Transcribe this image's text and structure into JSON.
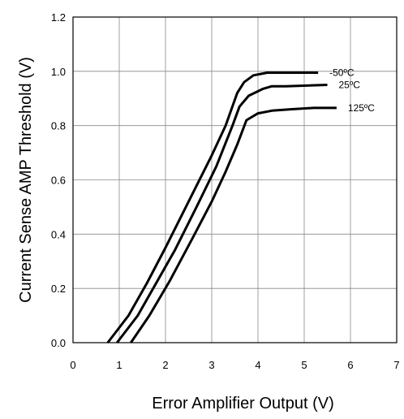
{
  "chart_data": {
    "type": "line",
    "title": "",
    "xlabel": "Error Amplifier Output (V)",
    "ylabel": "Current Sense AMP Threshold (V)",
    "xlim": [
      0,
      7
    ],
    "ylim": [
      0,
      1.2
    ],
    "x_ticks": [
      "0",
      "1",
      "2",
      "3",
      "4",
      "5",
      "6",
      "7"
    ],
    "y_ticks": [
      "0.0",
      "0.2",
      "0.4",
      "0.6",
      "0.8",
      "1.0",
      "1.2"
    ],
    "grid": true,
    "series": [
      {
        "name": "-50ºC",
        "color": "#000000",
        "points": [
          [
            0.75,
            0.0
          ],
          [
            1.2,
            0.1
          ],
          [
            1.6,
            0.22
          ],
          [
            2.0,
            0.35
          ],
          [
            2.5,
            0.52
          ],
          [
            3.0,
            0.69
          ],
          [
            3.3,
            0.8
          ],
          [
            3.55,
            0.92
          ],
          [
            3.7,
            0.96
          ],
          [
            3.9,
            0.985
          ],
          [
            4.2,
            0.995
          ],
          [
            5.3,
            0.995
          ]
        ]
      },
      {
        "name": "25ºC",
        "color": "#000000",
        "points": [
          [
            0.95,
            0.0
          ],
          [
            1.4,
            0.1
          ],
          [
            1.8,
            0.22
          ],
          [
            2.2,
            0.34
          ],
          [
            2.7,
            0.51
          ],
          [
            3.1,
            0.65
          ],
          [
            3.45,
            0.8
          ],
          [
            3.6,
            0.87
          ],
          [
            3.8,
            0.91
          ],
          [
            4.1,
            0.935
          ],
          [
            4.3,
            0.945
          ],
          [
            4.6,
            0.945
          ],
          [
            5.5,
            0.95
          ]
        ]
      },
      {
        "name": "125ºC",
        "color": "#000000",
        "points": [
          [
            1.25,
            0.0
          ],
          [
            1.65,
            0.1
          ],
          [
            2.1,
            0.23
          ],
          [
            2.6,
            0.39
          ],
          [
            3.0,
            0.52
          ],
          [
            3.3,
            0.63
          ],
          [
            3.55,
            0.73
          ],
          [
            3.75,
            0.82
          ],
          [
            4.0,
            0.845
          ],
          [
            4.3,
            0.855
          ],
          [
            4.7,
            0.86
          ],
          [
            5.2,
            0.865
          ],
          [
            5.7,
            0.865
          ]
        ]
      }
    ]
  }
}
